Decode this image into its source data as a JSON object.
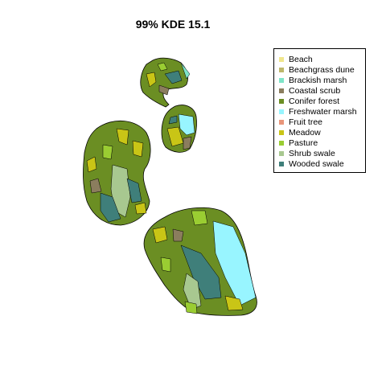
{
  "title": "99% KDE 15.1",
  "legend": [
    {
      "label": "Beach",
      "color": "#f0e68c"
    },
    {
      "label": "Beachgrass dune",
      "color": "#bdb76b"
    },
    {
      "label": "Brackish marsh",
      "color": "#7fe5c8"
    },
    {
      "label": "Coastal scrub",
      "color": "#8b7d5e"
    },
    {
      "label": "Conifer forest",
      "color": "#6b8e23"
    },
    {
      "label": "Freshwater marsh",
      "color": "#98f5ff"
    },
    {
      "label": "Fruit tree",
      "color": "#e9967a"
    },
    {
      "label": "Meadow",
      "color": "#c9c516"
    },
    {
      "label": "Pasture",
      "color": "#9acd32"
    },
    {
      "label": "Shrub swale",
      "color": "#a8c890"
    },
    {
      "label": "Wooded swale",
      "color": "#3f7f7a"
    }
  ]
}
